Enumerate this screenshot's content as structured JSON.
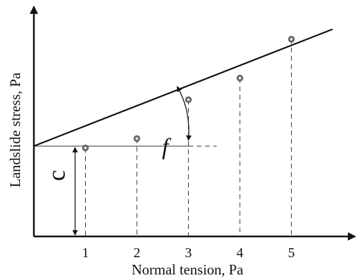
{
  "chart_data": {
    "type": "scatter",
    "xlabel": "Normal tension, Pa",
    "ylabel": "Landslide stress, Pa",
    "x_ticks": [
      "1",
      "2",
      "3",
      "4",
      "5"
    ],
    "points": [
      {
        "x": 1,
        "y": 0.89
      },
      {
        "x": 2,
        "y": 1.09
      },
      {
        "x": 3,
        "y": 1.92
      },
      {
        "x": 4,
        "y": 2.38
      },
      {
        "x": 5,
        "y": 3.21
      }
    ],
    "fit_line": {
      "intercept": 0.93,
      "slope": 0.43
    },
    "annotations": {
      "intercept_label": "c",
      "angle_label": "f"
    },
    "xlim": [
      0,
      6.23
    ],
    "ylim": [
      -1.0,
      3.9
    ],
    "grid": false,
    "colors": {
      "line": "#111111",
      "marker": "#777777",
      "guide": "#333333"
    }
  }
}
